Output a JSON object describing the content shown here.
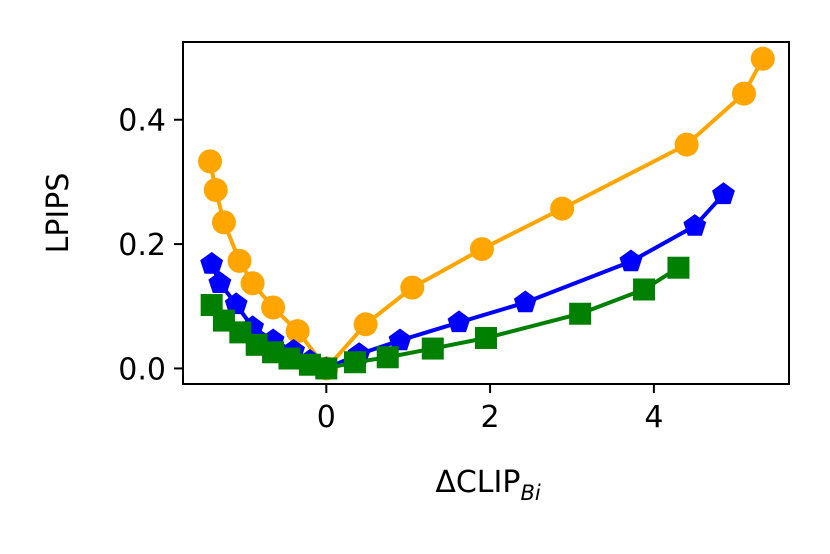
{
  "chart_data": {
    "type": "line",
    "title": "",
    "xlabel": "ΔCLIP",
    "xlabel_subscript": "Bi",
    "ylabel": "LPIPS",
    "xlim": [
      -1.75,
      5.65
    ],
    "ylim": [
      -0.025,
      0.525
    ],
    "xticks": [
      0,
      2,
      4
    ],
    "xtick_labels": [
      "0",
      "2",
      "4"
    ],
    "yticks": [
      0.0,
      0.2,
      0.4
    ],
    "ytick_labels": [
      "0.0",
      "0.2",
      "0.4"
    ],
    "grid": false,
    "legend": "none",
    "series": [
      {
        "color": "#ffa500",
        "marker": "circle",
        "x": [
          -1.42,
          -1.35,
          -1.25,
          -1.06,
          -0.9,
          -0.65,
          -0.35,
          0.0,
          0.48,
          1.05,
          1.9,
          2.88,
          4.4,
          5.1,
          5.33
        ],
        "y": [
          0.333,
          0.287,
          0.235,
          0.173,
          0.137,
          0.098,
          0.06,
          0.0,
          0.071,
          0.13,
          0.192,
          0.257,
          0.36,
          0.442,
          0.498
        ]
      },
      {
        "color": "#0000ff",
        "marker": "pentagon",
        "x": [
          -1.4,
          -1.3,
          -1.1,
          -0.9,
          -0.65,
          -0.4,
          -0.2,
          0.0,
          0.4,
          0.9,
          1.62,
          2.43,
          3.72,
          4.5,
          4.85
        ],
        "y": [
          0.168,
          0.137,
          0.103,
          0.066,
          0.045,
          0.028,
          0.012,
          0.0,
          0.023,
          0.045,
          0.074,
          0.106,
          0.172,
          0.229,
          0.28
        ]
      },
      {
        "color": "#008000",
        "marker": "square",
        "x": [
          -1.4,
          -1.25,
          -1.05,
          -0.85,
          -0.65,
          -0.45,
          -0.2,
          0.0,
          0.35,
          0.75,
          1.3,
          1.95,
          3.1,
          3.88,
          4.3
        ],
        "y": [
          0.102,
          0.077,
          0.058,
          0.038,
          0.026,
          0.016,
          0.006,
          0.0,
          0.01,
          0.018,
          0.032,
          0.049,
          0.088,
          0.127,
          0.162
        ]
      }
    ]
  }
}
